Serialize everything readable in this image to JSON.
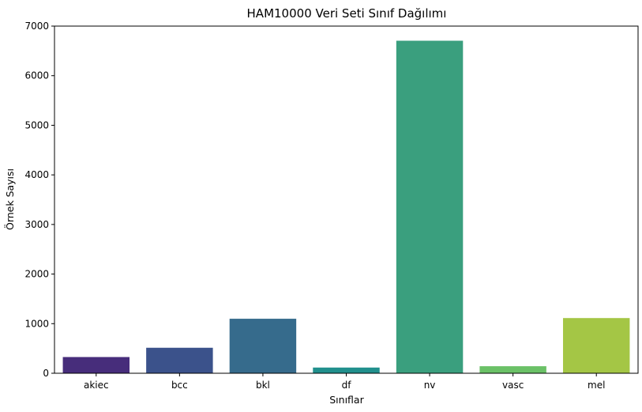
{
  "chart_data": {
    "type": "bar",
    "title": "HAM10000 Veri Seti Sınıf Dağılımı",
    "xlabel": "Sınıflar",
    "ylabel": "Örnek Sayısı",
    "categories": [
      "akiec",
      "bcc",
      "bkl",
      "df",
      "nv",
      "vasc",
      "mel"
    ],
    "values": [
      327,
      514,
      1099,
      115,
      6705,
      142,
      1113
    ],
    "ylim": [
      0,
      7000
    ],
    "yticks": [
      "0",
      "1000",
      "2000",
      "3000",
      "4000",
      "5000",
      "6000",
      "7000"
    ],
    "ytick_values": [
      0,
      1000,
      2000,
      3000,
      4000,
      5000,
      6000,
      7000
    ],
    "grid": false,
    "colors": [
      "#472d7b",
      "#3b528b",
      "#366b8c",
      "#21908d",
      "#3a9f7e",
      "#6bc167",
      "#a4c645"
    ]
  }
}
